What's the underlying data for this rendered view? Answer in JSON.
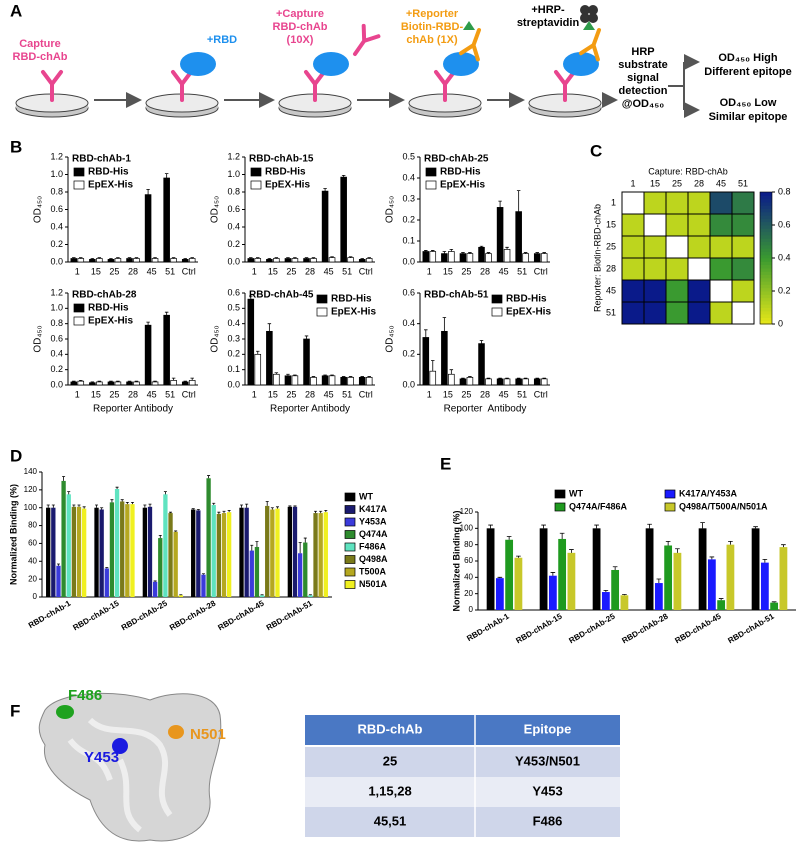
{
  "panel_labels": [
    "A",
    "B",
    "C",
    "D",
    "E",
    "F"
  ],
  "panel_a": {
    "steps": [
      {
        "lines": [
          "Capture",
          "RBD-chAb"
        ]
      },
      {
        "lines": [
          "+RBD"
        ]
      },
      {
        "lines": [
          "+Capture",
          "RBD-chAb",
          "(10X)"
        ]
      },
      {
        "lines": [
          "+Reporter",
          "Biotin-RBD-",
          "chAb (1X)"
        ]
      },
      {
        "lines": [
          "+HRP-",
          "streptavidin"
        ]
      }
    ],
    "detection": [
      "HRP",
      "substrate",
      "signal",
      "detection",
      "@OD₄₅₀"
    ],
    "outcomes": [
      {
        "lines": [
          "OD₄₅₀ High",
          "Different epitope"
        ]
      },
      {
        "lines": [
          "OD₄₅₀ Low",
          "Similar epitope"
        ]
      }
    ]
  },
  "chart_data": [
    {
      "type": "bar",
      "title": "RBD-chAb-1",
      "ylabel": "OD₄₅₀",
      "categories": [
        "1",
        "15",
        "25",
        "28",
        "45",
        "51",
        "Ctrl"
      ],
      "ylim": [
        0,
        1.2
      ],
      "yticks": [
        {
          "value": 0,
          "label": "0.0"
        },
        0.2,
        0.4,
        0.6,
        0.8,
        {
          "value": 1,
          "label": "1.0"
        },
        1.2
      ],
      "series": [
        {
          "name": "RBD-His",
          "color": "#000000",
          "values": [
            0.04,
            0.03,
            0.03,
            0.04,
            0.77,
            0.96,
            0.03
          ],
          "errors": [
            0.01,
            0.01,
            0.01,
            0.01,
            0.06,
            0.05,
            0.01
          ]
        },
        {
          "name": "EpEX-His",
          "color": "#ffffff",
          "values": [
            0.04,
            0.04,
            0.04,
            0.04,
            0.04,
            0.04,
            0.04
          ],
          "errors": [
            0.01,
            0.01,
            0.01,
            0.01,
            0.01,
            0.01,
            0.01
          ]
        }
      ]
    },
    {
      "type": "bar",
      "title": "RBD-chAb-15",
      "ylabel": "OD₄₅₀",
      "categories": [
        "1",
        "15",
        "25",
        "28",
        "45",
        "51",
        "Ctrl"
      ],
      "ylim": [
        0,
        1.2
      ],
      "yticks": [
        {
          "value": 0,
          "label": "0.0"
        },
        0.2,
        0.4,
        0.6,
        0.8,
        {
          "value": 1,
          "label": "1.0"
        },
        1.2
      ],
      "series": [
        {
          "name": "RBD-His",
          "color": "#000000",
          "values": [
            0.04,
            0.03,
            0.04,
            0.04,
            0.81,
            0.97,
            0.03
          ],
          "errors": [
            0.01,
            0.01,
            0.01,
            0.01,
            0.03,
            0.02,
            0.01
          ]
        },
        {
          "name": "EpEX-His",
          "color": "#ffffff",
          "values": [
            0.04,
            0.04,
            0.04,
            0.04,
            0.05,
            0.05,
            0.04
          ],
          "errors": [
            0.01,
            0.01,
            0.01,
            0.01,
            0.01,
            0.01,
            0.01
          ]
        }
      ]
    },
    {
      "type": "bar",
      "title": "RBD-chAb-25",
      "ylabel": "OD₄₅₀",
      "categories": [
        "1",
        "15",
        "25",
        "28",
        "45",
        "51",
        "Ctrl"
      ],
      "ylim": [
        0,
        0.5
      ],
      "yticks": [
        {
          "value": 0,
          "label": "0.0"
        },
        0.1,
        0.2,
        0.3,
        0.4,
        0.5
      ],
      "series": [
        {
          "name": "RBD-His",
          "color": "#000000",
          "values": [
            0.05,
            0.04,
            0.04,
            0.07,
            0.26,
            0.24,
            0.04
          ],
          "errors": [
            0.005,
            0.01,
            0.005,
            0.005,
            0.03,
            0.1,
            0.005
          ]
        },
        {
          "name": "EpEX-His",
          "color": "#ffffff",
          "values": [
            0.05,
            0.05,
            0.04,
            0.04,
            0.06,
            0.04,
            0.04
          ],
          "errors": [
            0.005,
            0.01,
            0.005,
            0.005,
            0.01,
            0.005,
            0.005
          ]
        }
      ]
    },
    {
      "type": "bar",
      "title": "RBD-chAb-28",
      "ylabel": "OD₄₅₀",
      "xlabel": "Reporter Antibody",
      "categories": [
        "1",
        "15",
        "25",
        "28",
        "45",
        "51",
        "Ctrl"
      ],
      "ylim": [
        0,
        1.2
      ],
      "yticks": [
        {
          "value": 0,
          "label": "0.0"
        },
        0.2,
        0.4,
        0.6,
        0.8,
        {
          "value": 1,
          "label": "1.0"
        },
        1.2
      ],
      "series": [
        {
          "name": "RBD-His",
          "color": "#000000",
          "values": [
            0.04,
            0.03,
            0.04,
            0.04,
            0.78,
            0.91,
            0.04
          ],
          "errors": [
            0.01,
            0.01,
            0.01,
            0.01,
            0.04,
            0.04,
            0.01
          ]
        },
        {
          "name": "EpEX-His",
          "color": "#ffffff",
          "values": [
            0.05,
            0.04,
            0.04,
            0.04,
            0.04,
            0.06,
            0.06
          ],
          "errors": [
            0.01,
            0.01,
            0.01,
            0.01,
            0.01,
            0.03,
            0.03
          ]
        }
      ]
    },
    {
      "type": "bar",
      "title": "RBD-chAb-45",
      "ylabel": "OD₄₅₀",
      "xlabel": "Reporter Antibody",
      "categories": [
        "1",
        "15",
        "25",
        "28",
        "45",
        "51",
        "Ctrl"
      ],
      "ylim": [
        0,
        0.6
      ],
      "yticks": [
        {
          "value": 0,
          "label": "0.0"
        },
        0.1,
        0.2,
        0.3,
        0.4,
        0.5,
        0.6
      ],
      "series": [
        {
          "name": "RBD-His",
          "color": "#000000",
          "values": [
            0.56,
            0.35,
            0.06,
            0.3,
            0.06,
            0.05,
            0.05
          ],
          "errors": [
            0.02,
            0.05,
            0.01,
            0.02,
            0.005,
            0.005,
            0.005
          ]
        },
        {
          "name": "EpEX-His",
          "color": "#ffffff",
          "values": [
            0.2,
            0.07,
            0.06,
            0.05,
            0.06,
            0.05,
            0.05
          ],
          "errors": [
            0.02,
            0.01,
            0.005,
            0.005,
            0.005,
            0.005,
            0.005
          ]
        }
      ]
    },
    {
      "type": "bar",
      "title": "RBD-chAb-51",
      "ylabel": "OD₄₅₀",
      "xlabel": "Reporter  Antibody",
      "categories": [
        "1",
        "15",
        "25",
        "28",
        "45",
        "51",
        "Ctrl"
      ],
      "ylim": [
        0,
        0.6
      ],
      "yticks": [
        {
          "value": 0,
          "label": "0.0"
        },
        0.2,
        0.4,
        0.6
      ],
      "series": [
        {
          "name": "RBD-His",
          "color": "#000000",
          "values": [
            0.31,
            0.35,
            0.04,
            0.27,
            0.04,
            0.04,
            0.04
          ],
          "errors": [
            0.05,
            0.09,
            0.005,
            0.02,
            0.005,
            0.005,
            0.005
          ]
        },
        {
          "name": "EpEX-His",
          "color": "#ffffff",
          "values": [
            0.09,
            0.07,
            0.05,
            0.04,
            0.04,
            0.04,
            0.04
          ],
          "errors": [
            0.07,
            0.03,
            0.005,
            0.005,
            0.005,
            0.005,
            0.005
          ]
        }
      ]
    },
    {
      "type": "heatmap",
      "xlabel": "Capture: RBD-chAb",
      "ylabel": "Reporter: Biotin-RBD-chAb",
      "x": [
        "1",
        "15",
        "25",
        "28",
        "45",
        "51"
      ],
      "y": [
        "1",
        "15",
        "25",
        "28",
        "45",
        "51"
      ],
      "values": [
        [
          null,
          0.1,
          0.1,
          0.1,
          0.65,
          0.5
        ],
        [
          0.1,
          null,
          0.1,
          0.1,
          0.45,
          0.45
        ],
        [
          0.1,
          0.1,
          null,
          0.1,
          0.1,
          0.1
        ],
        [
          0.1,
          0.1,
          0.1,
          null,
          0.4,
          0.45
        ],
        [
          0.8,
          0.8,
          0.4,
          0.8,
          null,
          0.1
        ],
        [
          0.8,
          0.8,
          0.4,
          0.8,
          0.1,
          null
        ]
      ],
      "zlim": [
        0,
        0.8
      ],
      "zticks": [
        0,
        0.2,
        0.4,
        0.6,
        0.8
      ],
      "colorscale": [
        "#e8e818",
        "#3a9a30",
        "#0a1a8a"
      ]
    },
    {
      "type": "bar",
      "ylabel": "Normalized Binding (%)",
      "categories": [
        "RBD-chAb-1",
        "RBD-chAb-15",
        "RBD-chAb-25",
        "RBD-chAb-28",
        "RBD-chAb-45",
        "RBD-chAb-51"
      ],
      "ylim": [
        0,
        140
      ],
      "yticks": [
        0,
        20,
        40,
        60,
        80,
        100,
        120,
        140
      ],
      "series": [
        {
          "name": "WT",
          "color": "#000000",
          "values": [
            100,
            100,
            100,
            98,
            100,
            101
          ],
          "errors": [
            3,
            3,
            3,
            1,
            3,
            1
          ]
        },
        {
          "name": "K417A",
          "color": "#1a1a6e",
          "values": [
            100,
            98,
            101,
            97,
            100,
            101
          ],
          "errors": [
            3,
            2,
            3,
            1,
            4,
            1
          ]
        },
        {
          "name": "Y453A",
          "color": "#3b3bdb",
          "values": [
            35,
            32,
            17,
            25,
            52,
            49
          ],
          "errors": [
            2,
            1,
            1,
            1,
            6,
            12
          ]
        },
        {
          "name": "Q474A",
          "color": "#2e8b2e",
          "values": [
            130,
            106,
            66,
            133,
            56,
            61
          ],
          "errors": [
            5,
            3,
            3,
            3,
            6,
            5
          ]
        },
        {
          "name": "F486A",
          "color": "#5fe3c0",
          "values": [
            115,
            121,
            115,
            103,
            2,
            2
          ],
          "errors": [
            3,
            2,
            3,
            2,
            0.5,
            0.5
          ]
        },
        {
          "name": "Q498A",
          "color": "#7a7a1a",
          "values": [
            101,
            107,
            94,
            93,
            102,
            94
          ],
          "errors": [
            2,
            2,
            1,
            2,
            5,
            2
          ]
        },
        {
          "name": "T500A",
          "color": "#b5a820",
          "values": [
            101,
            104,
            73,
            94,
            98,
            94
          ],
          "errors": [
            2,
            2,
            1,
            2,
            2,
            2
          ]
        },
        {
          "name": "N501A",
          "color": "#f0f020",
          "values": [
            99,
            104,
            2,
            95,
            99,
            95
          ],
          "errors": [
            2,
            2,
            0.5,
            2,
            2,
            2
          ]
        }
      ]
    },
    {
      "type": "bar",
      "ylabel": "Normalized Binding (%)",
      "categories": [
        "RBD-chAb-1",
        "RBD-chAb-15",
        "RBD-chAb-25",
        "RBD-chAb-28",
        "RBD-chAb-45",
        "RBD-chAb-51"
      ],
      "ylim": [
        0,
        120
      ],
      "yticks": [
        0,
        20,
        40,
        60,
        80,
        100,
        120
      ],
      "series": [
        {
          "name": "WT",
          "color": "#000000",
          "values": [
            100,
            100,
            100,
            100,
            100,
            100
          ],
          "errors": [
            4,
            4,
            4,
            5,
            7,
            2
          ]
        },
        {
          "name": "K417A/Y453A",
          "color": "#1a1aff",
          "values": [
            39,
            42,
            22,
            33,
            62,
            58
          ],
          "errors": [
            1,
            4,
            2,
            5,
            3,
            4
          ]
        },
        {
          "name": "Q474A/F486A",
          "color": "#1f9a1f",
          "values": [
            86,
            87,
            49,
            79,
            12,
            9
          ],
          "errors": [
            4,
            7,
            4,
            5,
            2,
            1
          ]
        },
        {
          "name": "Q498A/T500A/N501A",
          "color": "#c8c82a",
          "values": [
            64,
            70,
            18,
            70,
            80,
            77
          ],
          "errors": [
            2,
            4,
            1,
            5,
            4,
            3
          ]
        }
      ]
    }
  ],
  "panel_f": {
    "structure_labels": [
      "F486",
      "N501",
      "Y453"
    ],
    "table": {
      "header": [
        "RBD-chAb",
        "Epitope"
      ],
      "rows": [
        [
          "25",
          "Y453/N501"
        ],
        [
          "1,15,28",
          "Y453"
        ],
        [
          "45,51",
          "F486"
        ]
      ]
    }
  }
}
